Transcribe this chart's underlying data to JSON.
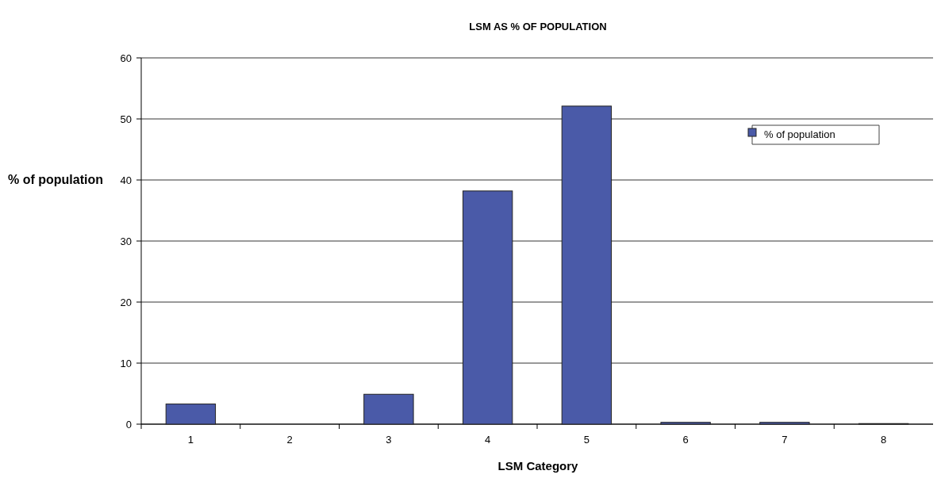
{
  "chart_data": {
    "type": "bar",
    "title": "LSM AS % OF POPULATION",
    "xlabel": "LSM Category",
    "ylabel": "% of population",
    "categories": [
      "1",
      "2",
      "3",
      "4",
      "5",
      "6",
      "7",
      "8"
    ],
    "series": [
      {
        "name": "% of population",
        "color": "#4a5aa8",
        "values": [
          3.3,
          0,
          4.9,
          38.2,
          52.1,
          0.3,
          0.3,
          0.1
        ]
      }
    ],
    "ylim": [
      0,
      60
    ],
    "yticks": [
      0,
      10,
      20,
      30,
      40,
      50,
      60
    ],
    "grid": "y",
    "legend": "right"
  }
}
